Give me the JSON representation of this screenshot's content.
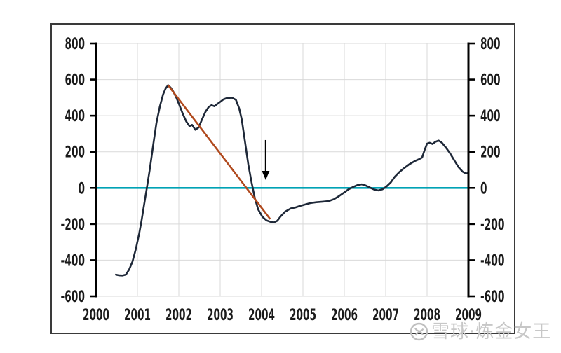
{
  "watermark": {
    "text": "雪球·炼金女王",
    "logo_icon": "xueqiu-snowball-logo",
    "color": "#c7c7c7"
  },
  "chart_data": {
    "type": "line",
    "title": "",
    "xlabel": "",
    "ylabel": "",
    "x_range": [
      2000,
      2009
    ],
    "y_range": [
      -600,
      800
    ],
    "grid": true,
    "legend": "none",
    "colors": {
      "series": "#1e2838",
      "trend": "#b0491d",
      "zero_line": "#00a2b5",
      "grid": "#d9d9d9",
      "axis": "#000000",
      "label": "#1a1a1a"
    },
    "yticks": [
      800,
      600,
      400,
      200,
      0,
      -200,
      -400,
      -600
    ],
    "xticks": [
      2000,
      2001,
      2002,
      2003,
      2004,
      2005,
      2006,
      2007,
      2008,
      2009
    ],
    "series": [
      {
        "name": "main-line",
        "points": [
          [
            2000.48,
            -480
          ],
          [
            2000.56,
            -484
          ],
          [
            2000.64,
            -485
          ],
          [
            2000.72,
            -480
          ],
          [
            2000.8,
            -452
          ],
          [
            2000.88,
            -408
          ],
          [
            2000.96,
            -340
          ],
          [
            2001.04,
            -255
          ],
          [
            2001.1,
            -180
          ],
          [
            2001.16,
            -95
          ],
          [
            2001.22,
            -10
          ],
          [
            2001.3,
            105
          ],
          [
            2001.38,
            235
          ],
          [
            2001.46,
            360
          ],
          [
            2001.54,
            450
          ],
          [
            2001.62,
            518
          ],
          [
            2001.68,
            550
          ],
          [
            2001.74,
            569
          ],
          [
            2001.8,
            556
          ],
          [
            2001.87,
            532
          ],
          [
            2001.94,
            500
          ],
          [
            2002.02,
            455
          ],
          [
            2002.1,
            408
          ],
          [
            2002.18,
            368
          ],
          [
            2002.26,
            342
          ],
          [
            2002.32,
            349
          ],
          [
            2002.4,
            322
          ],
          [
            2002.48,
            335
          ],
          [
            2002.56,
            378
          ],
          [
            2002.64,
            420
          ],
          [
            2002.72,
            448
          ],
          [
            2002.79,
            458
          ],
          [
            2002.86,
            452
          ],
          [
            2002.93,
            465
          ],
          [
            2003.0,
            476
          ],
          [
            2003.08,
            490
          ],
          [
            2003.16,
            497
          ],
          [
            2003.28,
            500
          ],
          [
            2003.38,
            488
          ],
          [
            2003.46,
            440
          ],
          [
            2003.52,
            380
          ],
          [
            2003.6,
            255
          ],
          [
            2003.68,
            130
          ],
          [
            2003.76,
            30
          ],
          [
            2003.84,
            -60
          ],
          [
            2003.92,
            -120
          ],
          [
            2004.02,
            -160
          ],
          [
            2004.12,
            -180
          ],
          [
            2004.22,
            -188
          ],
          [
            2004.3,
            -191
          ],
          [
            2004.38,
            -182
          ],
          [
            2004.46,
            -158
          ],
          [
            2004.57,
            -131
          ],
          [
            2004.7,
            -114
          ],
          [
            2004.82,
            -108
          ],
          [
            2004.92,
            -100
          ],
          [
            2005.05,
            -92
          ],
          [
            2005.18,
            -84
          ],
          [
            2005.32,
            -79
          ],
          [
            2005.48,
            -76
          ],
          [
            2005.62,
            -73
          ],
          [
            2005.75,
            -62
          ],
          [
            2005.88,
            -44
          ],
          [
            2006.0,
            -25
          ],
          [
            2006.1,
            -8
          ],
          [
            2006.22,
            6
          ],
          [
            2006.32,
            16
          ],
          [
            2006.42,
            20
          ],
          [
            2006.52,
            13
          ],
          [
            2006.62,
            2
          ],
          [
            2006.72,
            -9
          ],
          [
            2006.82,
            -14
          ],
          [
            2006.92,
            -8
          ],
          [
            2007.02,
            8
          ],
          [
            2007.12,
            30
          ],
          [
            2007.22,
            62
          ],
          [
            2007.34,
            90
          ],
          [
            2007.46,
            112
          ],
          [
            2007.58,
            132
          ],
          [
            2007.7,
            148
          ],
          [
            2007.8,
            158
          ],
          [
            2007.88,
            168
          ],
          [
            2007.94,
            210
          ],
          [
            2008.0,
            245
          ],
          [
            2008.06,
            250
          ],
          [
            2008.13,
            243
          ],
          [
            2008.2,
            255
          ],
          [
            2008.28,
            262
          ],
          [
            2008.36,
            250
          ],
          [
            2008.46,
            222
          ],
          [
            2008.56,
            190
          ],
          [
            2008.66,
            152
          ],
          [
            2008.76,
            115
          ],
          [
            2008.86,
            90
          ],
          [
            2008.94,
            80
          ],
          [
            2009.0,
            82
          ]
        ]
      }
    ],
    "trend_line": {
      "from": [
        2001.74,
        569
      ],
      "to": [
        2004.21,
        -173
      ]
    },
    "zero_line": {
      "value": 0
    },
    "arrow_annotation": {
      "x": 2004.1,
      "from_value": 265,
      "to_value": 44
    }
  }
}
